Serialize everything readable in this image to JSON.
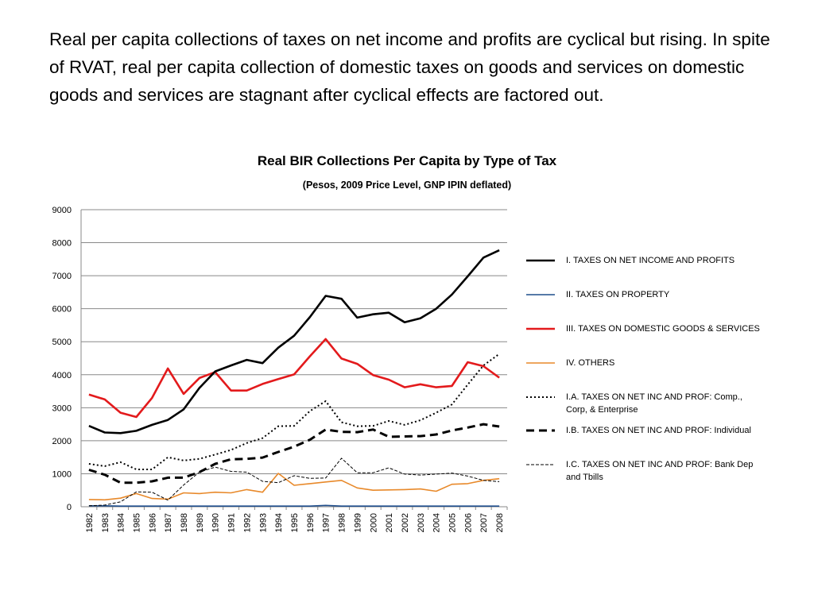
{
  "slide": {
    "body_text": "Real per capita collections of taxes on net income and profits are cyclical but rising.  In spite of RVAT, real per capita collection of domestic taxes on goods and services on domestic goods and services are stagnant after cyclical effects are factored out."
  },
  "chart_data": {
    "type": "line",
    "title": "Real BIR Collections Per Capita by Type of Tax",
    "subtitle": "(Pesos, 2009 Price Level, GNP IPIN deflated)",
    "xlabel": "",
    "ylabel": "",
    "ylim": [
      0,
      9000
    ],
    "yticks": [
      0,
      1000,
      2000,
      3000,
      4000,
      5000,
      6000,
      7000,
      8000,
      9000
    ],
    "grid": true,
    "legend_position": "right",
    "categories": [
      "1982",
      "1983",
      "1984",
      "1985",
      "1986",
      "1987",
      "1988",
      "1989",
      "1990",
      "1991",
      "1992",
      "1993",
      "1994",
      "1995",
      "1996",
      "1997",
      "1998",
      "1999",
      "2000",
      "2001",
      "2002",
      "2003",
      "2004",
      "2005",
      "2006",
      "2007",
      "2008"
    ],
    "series": [
      {
        "name": "I. TAXES ON NET INCOME  AND PROFITS",
        "color": "#000000",
        "style": "solid-thick",
        "values": [
          2450,
          2250,
          2230,
          2300,
          2480,
          2630,
          2950,
          3600,
          4100,
          4280,
          4450,
          4350,
          4820,
          5180,
          5750,
          6390,
          6300,
          5730,
          5830,
          5880,
          5590,
          5710,
          6000,
          6430,
          6980,
          7550,
          7770
        ]
      },
      {
        "name": "II. TAXES ON PROPERTY",
        "color": "#1f4e8c",
        "style": "solid",
        "values": [
          30,
          30,
          20,
          20,
          20,
          20,
          20,
          20,
          20,
          20,
          20,
          20,
          20,
          20,
          20,
          40,
          20,
          20,
          20,
          20,
          20,
          20,
          20,
          20,
          20,
          20,
          20
        ]
      },
      {
        "name": "III. TAXES ON DOMESTIC GOODS & SERVICES",
        "color": "#e31a1c",
        "style": "solid-thick",
        "values": [
          3400,
          3250,
          2850,
          2720,
          3300,
          4190,
          3420,
          3900,
          4080,
          3520,
          3520,
          3720,
          3870,
          4010,
          4560,
          5080,
          4490,
          4330,
          3990,
          3850,
          3620,
          3710,
          3620,
          3660,
          4380,
          4260,
          3910
        ]
      },
      {
        "name": "IV. OTHERS",
        "color": "#e8892a",
        "style": "solid",
        "values": [
          220,
          210,
          260,
          400,
          250,
          230,
          420,
          400,
          440,
          420,
          520,
          440,
          1010,
          650,
          700,
          750,
          800,
          570,
          500,
          510,
          520,
          540,
          470,
          680,
          700,
          800,
          850
        ]
      },
      {
        "name": "I.A. TAXES ON NET INC  AND PROF: Comp., Corp, & Enterprise",
        "color": "#000000",
        "style": "dotted",
        "values": [
          1300,
          1230,
          1350,
          1130,
          1130,
          1500,
          1400,
          1450,
          1580,
          1720,
          1930,
          2080,
          2440,
          2450,
          2900,
          3200,
          2560,
          2440,
          2450,
          2600,
          2480,
          2620,
          2850,
          3100,
          3700,
          4280,
          4630
        ]
      },
      {
        "name": "I.B. TAXES ON NET INC  AND PROF: Individual",
        "color": "#000000",
        "style": "dashed-thick",
        "values": [
          1120,
          970,
          730,
          730,
          770,
          880,
          880,
          1050,
          1300,
          1440,
          1450,
          1490,
          1660,
          1820,
          2030,
          2340,
          2270,
          2260,
          2340,
          2120,
          2130,
          2140,
          2190,
          2310,
          2400,
          2500,
          2430
        ]
      },
      {
        "name": "I.C. TAXES ON NET INC  AND PROF: Bank Dep and Tbills",
        "color": "#000000",
        "style": "dashed-thin",
        "values": [
          30,
          50,
          150,
          450,
          440,
          200,
          660,
          1050,
          1200,
          1070,
          1050,
          770,
          730,
          940,
          860,
          870,
          1470,
          1030,
          1030,
          1180,
          990,
          960,
          990,
          1020,
          930,
          800,
          760
        ]
      }
    ]
  }
}
